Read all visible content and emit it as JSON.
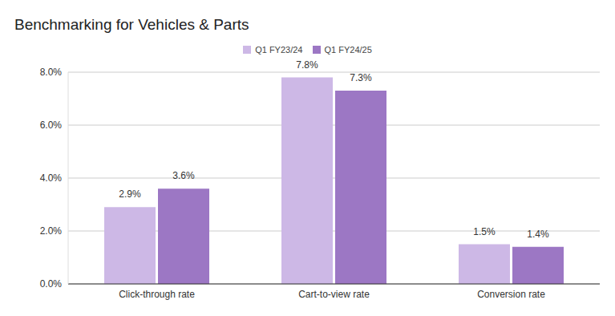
{
  "chart_data": {
    "type": "bar",
    "title": "Benchmarking for Vehicles & Parts",
    "categories": [
      "Click-through rate",
      "Cart-to-view rate",
      "Conversion rate"
    ],
    "series": [
      {
        "name": "Q1 FY23/24",
        "color": "#cdb8e6",
        "values": [
          2.9,
          7.8,
          1.5
        ],
        "value_labels": [
          "2.9%",
          "7.8%",
          "1.5%"
        ]
      },
      {
        "name": "Q1 FY24/25",
        "color": "#9c77c4",
        "values": [
          3.6,
          7.3,
          1.4
        ],
        "value_labels": [
          "3.6%",
          "7.3%",
          "1.4%"
        ]
      }
    ],
    "ylim": [
      0,
      8
    ],
    "yticks": [
      {
        "value": 0,
        "label": "0.0%"
      },
      {
        "value": 2,
        "label": "2.0%"
      },
      {
        "value": 4,
        "label": "4.0%"
      },
      {
        "value": 6,
        "label": "6.0%"
      },
      {
        "value": 8,
        "label": "8.0%"
      }
    ],
    "grid": true,
    "legend": "top",
    "data_labels": true
  }
}
